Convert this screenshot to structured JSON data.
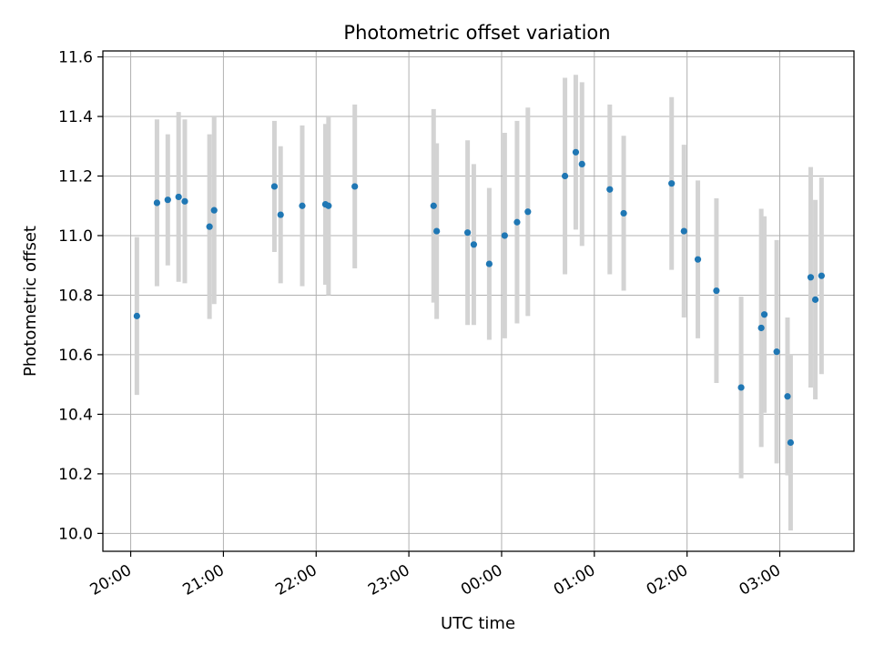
{
  "chart_data": {
    "type": "scatter",
    "title": "Photometric offset variation",
    "xlabel": "UTC time",
    "ylabel": "Photometric offset",
    "x_tick_labels": [
      "20:00",
      "21:00",
      "22:00",
      "23:00",
      "00:00",
      "01:00",
      "02:00",
      "03:00"
    ],
    "y_tick_labels": [
      "10.0",
      "10.2",
      "10.4",
      "10.6",
      "10.8",
      "11.0",
      "11.2",
      "11.4",
      "11.6"
    ],
    "y_ticks": [
      10.0,
      10.2,
      10.4,
      10.6,
      10.8,
      11.0,
      11.2,
      11.4,
      11.6
    ],
    "xlim": [
      "19:42",
      "27:48"
    ],
    "ylim": [
      9.94,
      11.62
    ],
    "grid": true,
    "marker_color": "#1f77b4",
    "errorbar_color": "#d3d3d3",
    "series": [
      {
        "points": [
          {
            "x": "20:04",
            "y": 10.73,
            "err": 0.265
          },
          {
            "x": "20:17",
            "y": 11.11,
            "err": 0.28
          },
          {
            "x": "20:24",
            "y": 11.12,
            "err": 0.22
          },
          {
            "x": "20:31",
            "y": 11.13,
            "err": 0.285
          },
          {
            "x": "20:35",
            "y": 11.115,
            "err": 0.275
          },
          {
            "x": "20:51",
            "y": 11.03,
            "err": 0.31
          },
          {
            "x": "20:54",
            "y": 11.085,
            "err": 0.315
          },
          {
            "x": "21:33",
            "y": 11.165,
            "err": 0.22
          },
          {
            "x": "21:37",
            "y": 11.07,
            "err": 0.23
          },
          {
            "x": "21:51",
            "y": 11.1,
            "err": 0.27
          },
          {
            "x": "22:06",
            "y": 11.105,
            "err": 0.27
          },
          {
            "x": "22:08",
            "y": 11.1,
            "err": 0.3
          },
          {
            "x": "22:25",
            "y": 11.165,
            "err": 0.275
          },
          {
            "x": "23:16",
            "y": 11.1,
            "err": 0.325
          },
          {
            "x": "23:18",
            "y": 11.015,
            "err": 0.295
          },
          {
            "x": "23:38",
            "y": 11.01,
            "err": 0.31
          },
          {
            "x": "23:42",
            "y": 10.97,
            "err": 0.27
          },
          {
            "x": "23:52",
            "y": 10.905,
            "err": 0.255
          },
          {
            "x": "24:02",
            "y": 11.0,
            "err": 0.345
          },
          {
            "x": "24:10",
            "y": 11.045,
            "err": 0.34
          },
          {
            "x": "24:17",
            "y": 11.08,
            "err": 0.35
          },
          {
            "x": "24:41",
            "y": 11.2,
            "err": 0.33
          },
          {
            "x": "24:48",
            "y": 11.28,
            "err": 0.26
          },
          {
            "x": "24:52",
            "y": 11.24,
            "err": 0.275
          },
          {
            "x": "25:10",
            "y": 11.155,
            "err": 0.285
          },
          {
            "x": "25:19",
            "y": 11.075,
            "err": 0.26
          },
          {
            "x": "25:50",
            "y": 11.175,
            "err": 0.29
          },
          {
            "x": "25:58",
            "y": 11.015,
            "err": 0.29
          },
          {
            "x": "26:07",
            "y": 10.92,
            "err": 0.265
          },
          {
            "x": "26:19",
            "y": 10.815,
            "err": 0.31
          },
          {
            "x": "26:35",
            "y": 10.49,
            "err": 0.305
          },
          {
            "x": "26:48",
            "y": 10.69,
            "err": 0.4
          },
          {
            "x": "26:50",
            "y": 10.735,
            "err": 0.33
          },
          {
            "x": "26:58",
            "y": 10.61,
            "err": 0.375
          },
          {
            "x": "27:05",
            "y": 10.46,
            "err": 0.265
          },
          {
            "x": "27:07",
            "y": 10.305,
            "err": 0.295
          },
          {
            "x": "27:20",
            "y": 10.86,
            "err": 0.37
          },
          {
            "x": "27:23",
            "y": 10.785,
            "err": 0.335
          },
          {
            "x": "27:27",
            "y": 10.865,
            "err": 0.33
          }
        ]
      }
    ]
  }
}
